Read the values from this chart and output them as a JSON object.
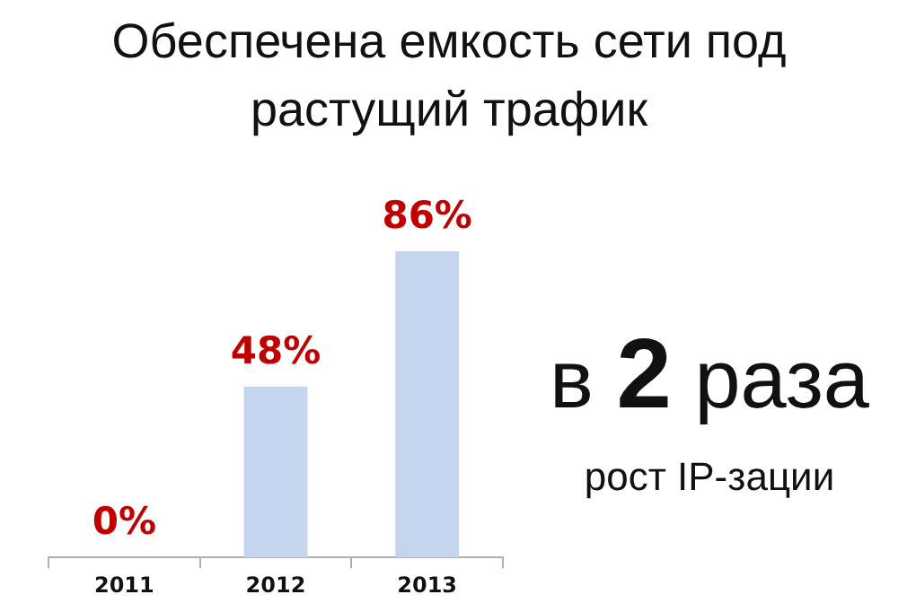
{
  "chart_data": {
    "type": "bar",
    "title": "Обеспечена емкость сети под растущий трафик",
    "categories": [
      "2011",
      "2012",
      "2013"
    ],
    "values": [
      0,
      48,
      86
    ],
    "value_labels": [
      "0%",
      "48%",
      "86%"
    ],
    "color": "#c5d4ef",
    "annotations": [
      "в 2 раза",
      "рост IP-зации"
    ]
  }
}
